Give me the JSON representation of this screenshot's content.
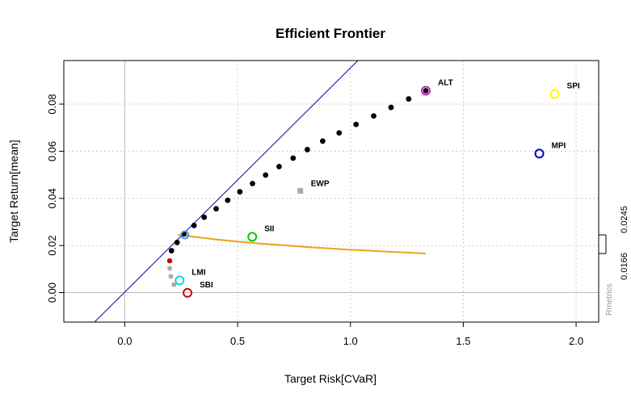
{
  "chart_data": {
    "type": "scatter",
    "title": "Efficient Frontier",
    "xlabel": "Target Risk[CVaR]",
    "ylabel": "Target Return[mean]",
    "xlim": [
      -0.27,
      2.1
    ],
    "ylim": [
      -0.0125,
      0.0985
    ],
    "xticks": [
      0.0,
      0.5,
      1.0,
      1.5,
      2.0
    ],
    "xtick_labels": [
      "0.0",
      "0.5",
      "1.0",
      "1.5",
      "2.0"
    ],
    "yticks": [
      0.0,
      0.02,
      0.04,
      0.06,
      0.08
    ],
    "ytick_labels": [
      "0.00",
      "0.02",
      "0.04",
      "0.06",
      "0.08"
    ],
    "grid": true,
    "right_axis_labels": [
      {
        "value": 0.0245,
        "label": "0.0245"
      },
      {
        "value": 0.0166,
        "label": "0.0166"
      }
    ],
    "watermark": "Rmetrics",
    "colors": {
      "frontier": "#000000",
      "inefficient": "#cc0000",
      "min_variance_path": "#aaaaaa",
      "tangency_line": "#0000aa",
      "sharpe_curve": "#e8a317",
      "equal_weights": "#aaaaaa",
      "axis_zero": "#bbbbbb",
      "grid": "#cccccc"
    },
    "tangency_line": {
      "x": [
        -0.134,
        1.033
      ],
      "y": [
        -0.0125,
        0.0985
      ]
    },
    "efficient_frontier": {
      "x": [
        0.207,
        0.232,
        0.262,
        0.307,
        0.352,
        0.405,
        0.456,
        0.51,
        0.566,
        0.624,
        0.684,
        0.746,
        0.809,
        0.877,
        0.95,
        1.025,
        1.103,
        1.18,
        1.258,
        1.334
      ],
      "y": [
        0.0178,
        0.0213,
        0.0249,
        0.0285,
        0.032,
        0.0356,
        0.0392,
        0.0428,
        0.0463,
        0.0499,
        0.0535,
        0.0571,
        0.0607,
        0.0643,
        0.0678,
        0.0714,
        0.075,
        0.0786,
        0.0822,
        0.0857
      ]
    },
    "inefficient_points": {
      "x": [
        0.199
      ],
      "y": [
        0.0135
      ]
    },
    "lower_points": {
      "x": [
        0.199,
        0.204,
        0.218
      ],
      "y": [
        0.0103,
        0.0069,
        0.0034
      ]
    },
    "sharpe_curve": {
      "x": [
        0.235,
        0.3,
        0.4,
        0.5,
        0.6,
        0.7,
        0.8,
        0.9,
        1.0,
        1.1,
        1.2,
        1.3,
        1.334
      ],
      "y": [
        0.0245,
        0.0238,
        0.0226,
        0.0217,
        0.0208,
        0.0201,
        0.0194,
        0.0188,
        0.0182,
        0.0177,
        0.0172,
        0.0168,
        0.0166
      ]
    },
    "tangency_point": {
      "x": 0.266,
      "y": 0.0245,
      "color": "#3d99f0"
    },
    "equal_weights_portfolio": {
      "label": "EWP",
      "x": 0.778,
      "y": 0.0432
    },
    "assets": [
      {
        "label": "ALT",
        "x": 1.334,
        "y": 0.0857,
        "color": "#c81fb4"
      },
      {
        "label": "SPI",
        "x": 1.905,
        "y": 0.0843,
        "color": "#ffff00"
      },
      {
        "label": "MPI",
        "x": 1.837,
        "y": 0.059,
        "color": "#0000cc"
      },
      {
        "label": "SII",
        "x": 0.565,
        "y": 0.0237,
        "color": "#00cc00"
      },
      {
        "label": "LMI",
        "x": 0.243,
        "y": 0.0052,
        "color": "#00dddd"
      },
      {
        "label": "SBI",
        "x": 0.278,
        "y": -0.0001,
        "color": "#cc0000"
      }
    ]
  }
}
